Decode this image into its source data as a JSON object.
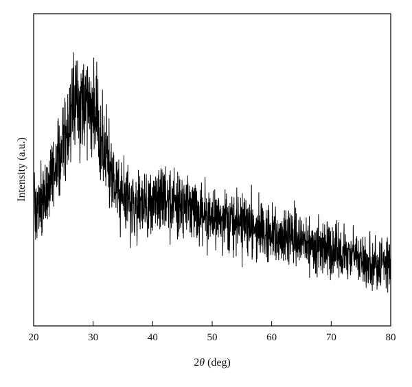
{
  "chart_data": {
    "type": "line",
    "title": "",
    "xlabel_prefix": "2",
    "xlabel_symbol": "θ",
    "xlabel_suffix": " (deg)",
    "ylabel": "Intensity (a.u.)",
    "xlim": [
      20,
      80
    ],
    "ylim": [
      0,
      1
    ],
    "x_ticks": [
      20,
      30,
      40,
      50,
      60,
      70,
      80
    ],
    "y_ticks_labeled": false,
    "grid": false,
    "legend": "none",
    "line_color": "#000000",
    "series": [
      {
        "x": [
          20,
          21,
          22,
          23,
          24,
          25,
          26,
          27,
          28,
          29,
          30,
          31,
          32,
          33,
          34,
          35,
          36,
          37,
          38,
          39,
          40,
          41,
          42,
          43,
          44,
          45,
          46,
          47,
          48,
          49,
          50,
          51,
          52,
          53,
          54,
          55,
          56,
          57,
          58,
          59,
          60,
          61,
          62,
          63,
          64,
          65,
          66,
          67,
          68,
          69,
          70,
          71,
          72,
          73,
          74,
          75,
          76,
          77,
          78,
          79,
          80
        ],
        "values": [
          0.38,
          0.4,
          0.43,
          0.47,
          0.53,
          0.59,
          0.66,
          0.71,
          0.74,
          0.73,
          0.69,
          0.62,
          0.55,
          0.49,
          0.44,
          0.41,
          0.39,
          0.38,
          0.38,
          0.39,
          0.4,
          0.41,
          0.41,
          0.4,
          0.4,
          0.39,
          0.38,
          0.37,
          0.37,
          0.36,
          0.35,
          0.35,
          0.34,
          0.34,
          0.33,
          0.33,
          0.32,
          0.32,
          0.31,
          0.3,
          0.3,
          0.29,
          0.29,
          0.28,
          0.28,
          0.27,
          0.26,
          0.26,
          0.25,
          0.25,
          0.24,
          0.24,
          0.23,
          0.23,
          0.22,
          0.21,
          0.21,
          0.2,
          0.2,
          0.19,
          0.19
        ]
      }
    ]
  }
}
